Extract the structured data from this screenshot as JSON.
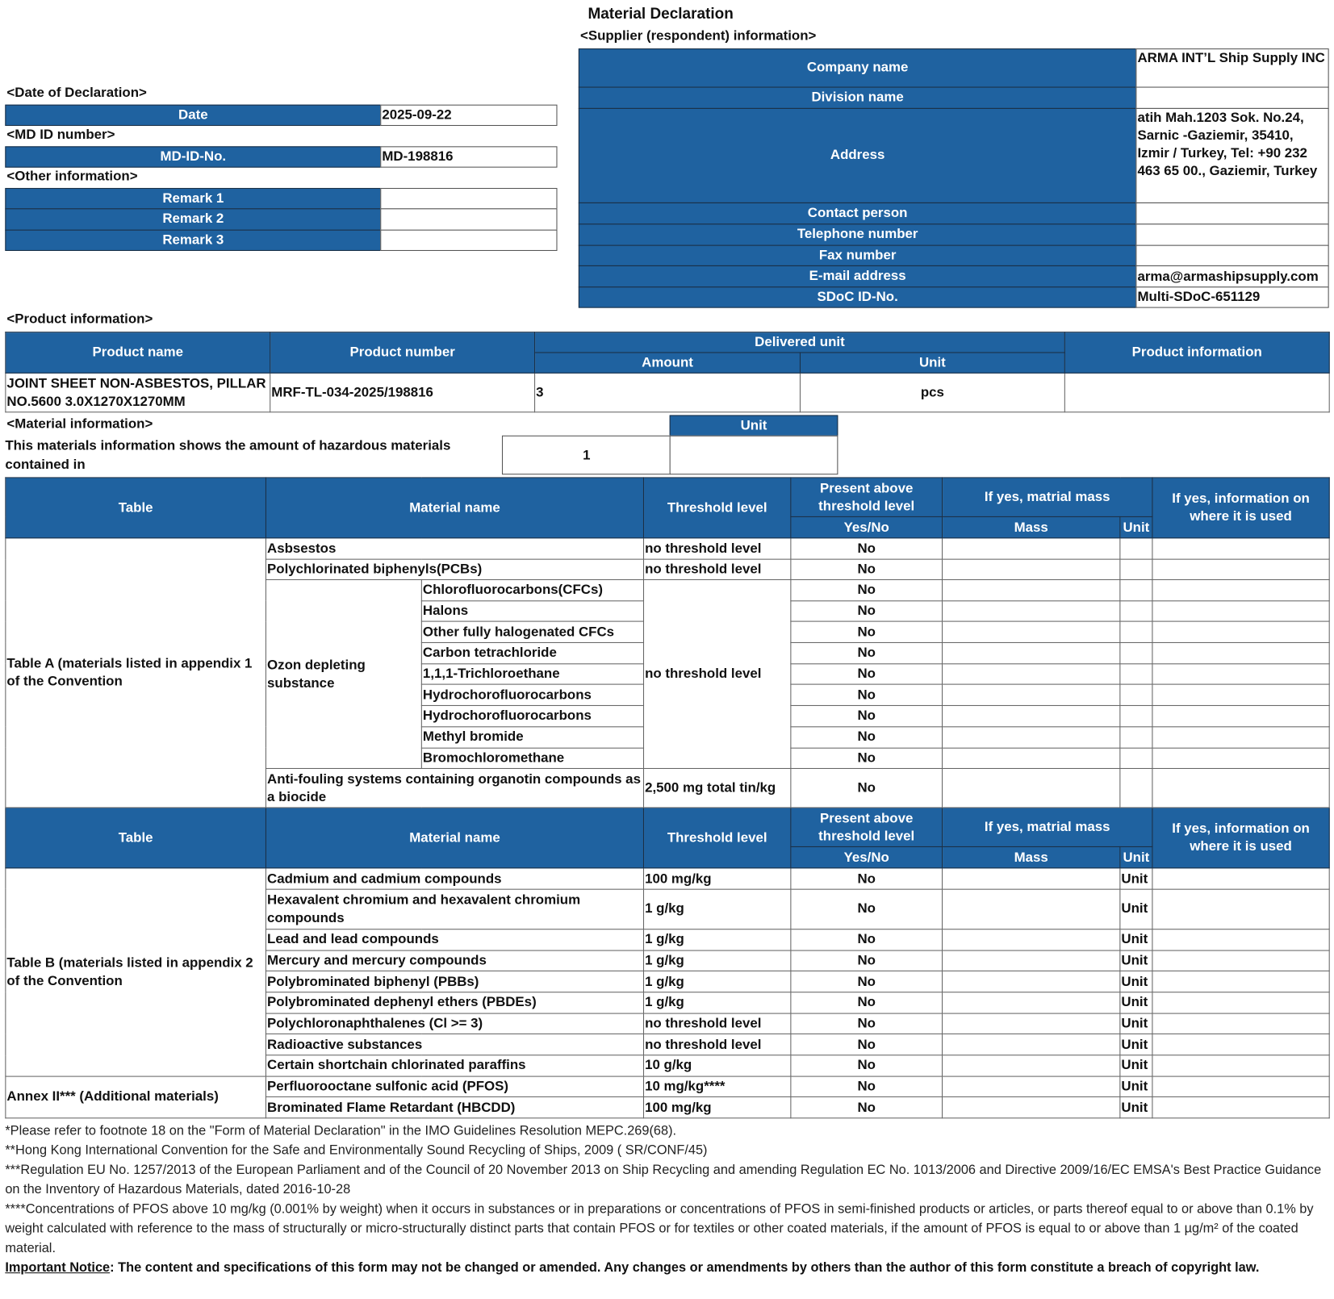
{
  "title": "Material Declaration",
  "supplier": {
    "section_label": "<Supplier (respondent) information>",
    "rows": [
      {
        "label": "Company name",
        "value": "ARMA INT’L Ship Supply INC"
      },
      {
        "label": "Division name",
        "value": ""
      },
      {
        "label": "Address",
        "value": "atih Mah.1203 Sok. No.24, Sarnic -Gaziemir, 35410, Izmir / Turkey, Tel: +90 232 463 65 00., Gaziemir, Turkey"
      },
      {
        "label": "Contact person",
        "value": ""
      },
      {
        "label": "Telephone number",
        "value": ""
      },
      {
        "label": "Fax number",
        "value": ""
      },
      {
        "label": "E-mail address",
        "value": "arma@armashipsupply.com"
      },
      {
        "label": "SDoC ID-No.",
        "value": "Multi-SDoC-651129"
      }
    ]
  },
  "declaration": {
    "section_label": "<Date of Declaration>",
    "date_label": "Date",
    "date_value": "2025-09-22"
  },
  "md_id": {
    "section_label": "<MD ID number>",
    "label": "MD-ID-No.",
    "value": "MD-198816"
  },
  "other": {
    "section_label": "<Other information>",
    "remarks": [
      {
        "label": "Remark 1",
        "value": ""
      },
      {
        "label": "Remark 2",
        "value": ""
      },
      {
        "label": "Remark 3",
        "value": ""
      }
    ]
  },
  "product": {
    "section_label": "<Product information>",
    "headers": {
      "name": "Product name",
      "number": "Product number",
      "delivered": "Delivered unit",
      "amount": "Amount",
      "unit": "Unit",
      "info": "Product information"
    },
    "row": {
      "name": "JOINT SHEET NON-ASBESTOS, PILLAR NO.5600 3.0X1270X1270MM",
      "number": "MRF-TL-034-2025/198816",
      "amount": "3",
      "unit": "pcs",
      "info": ""
    }
  },
  "material_info": {
    "section_label": "<Material information>",
    "statement": "This materials information shows the amount of hazardous materials contained in",
    "amount": "1",
    "unit_label": "Unit",
    "unit_value": ""
  },
  "headers": {
    "table": "Table",
    "material_name": "Material name",
    "threshold": "Threshold level",
    "present": "Present above threshold level",
    "yes_no": "Yes/No",
    "mass_group": "If yes, matrial mass",
    "mass": "Mass",
    "unit": "Unit",
    "info": "If yes, information on where it is used"
  },
  "table_a": {
    "label": "Table A (materials listed in appendix 1 of the Convention",
    "rows": [
      {
        "name": "Asbsestos",
        "threshold": "no threshold level",
        "present": "No"
      },
      {
        "name": "Polychlorinated biphenyls(PCBs)",
        "threshold": "no threshold level",
        "present": "No"
      }
    ],
    "ozone": {
      "label": "Ozon depleting substance",
      "threshold": "no threshold level",
      "items": [
        {
          "name": "Chlorofluorocarbons(CFCs)",
          "present": "No"
        },
        {
          "name": "Halons",
          "present": "No"
        },
        {
          "name": "Other fully halogenated CFCs",
          "present": "No"
        },
        {
          "name": "Carbon tetrachloride",
          "present": "No"
        },
        {
          "name": "1,1,1-Trichloroethane",
          "present": "No"
        },
        {
          "name": "Hydrochorofluorocarbons",
          "present": "No"
        },
        {
          "name": "Hydrochorofluorocarbons",
          "present": "No"
        },
        {
          "name": "Methyl bromide",
          "present": "No"
        },
        {
          "name": "Bromochloromethane",
          "present": "No"
        }
      ]
    },
    "antifouling": {
      "name": "Anti-fouling systems containing organotin compounds as a biocide",
      "threshold": "2,500 mg total tin/kg",
      "present": "No"
    }
  },
  "table_b": {
    "label": "Table B (materials listed in appendix 2 of the Convention",
    "annex_label": "Annex II*** (Additional materials)",
    "rows": [
      {
        "name": "Cadmium and cadmium compounds",
        "threshold": "100 mg/kg",
        "present": "No",
        "unit": "Unit"
      },
      {
        "name": "Hexavalent chromium and hexavalent chromium compounds",
        "threshold": "1 g/kg",
        "present": "No",
        "unit": "Unit"
      },
      {
        "name": "Lead and lead compounds",
        "threshold": "1 g/kg",
        "present": "No",
        "unit": "Unit"
      },
      {
        "name": "Mercury and mercury compounds",
        "threshold": "1 g/kg",
        "present": "No",
        "unit": "Unit"
      },
      {
        "name": "Polybrominated biphenyl (PBBs)",
        "threshold": "1 g/kg",
        "present": "No",
        "unit": "Unit"
      },
      {
        "name": "Polybrominated dephenyl ethers (PBDEs)",
        "threshold": "1 g/kg",
        "present": "No",
        "unit": "Unit"
      },
      {
        "name": "Polychloronaphthalenes (Cl >= 3)",
        "threshold": "no threshold level",
        "present": "No",
        "unit": "Unit"
      },
      {
        "name": "Radioactive substances",
        "threshold": "no threshold level",
        "present": "No",
        "unit": "Unit"
      },
      {
        "name": "Certain shortchain chlorinated paraffins",
        "threshold": "10 g/kg",
        "present": "No",
        "unit": "Unit"
      },
      {
        "name": "Perfluorooctane sulfonic acid (PFOS)",
        "threshold": "10 mg/kg****",
        "present": "No",
        "unit": "Unit"
      },
      {
        "name": "Brominated Flame Retardant (HBCDD)",
        "threshold": "100 mg/kg",
        "present": "No",
        "unit": "Unit"
      }
    ]
  },
  "footnotes": [
    "*Please refer to footnote 18 on the \"Form of Material Declaration\" in the IMO Guidelines Resolution MEPC.269(68).",
    "**Hong Kong International Convention for the Safe and Environmentally Sound Recycling of Ships, 2009 ( SR/CONF/45)",
    "***Regulation EU No. 1257/2013 of the European Parliament and of the Council of 20 November 2013 on Ship Recycling and amending Regulation EC No. 1013/2006 and Directive 2009/16/EC EMSA's Best Practice Guidance on the Inventory of Hazardous Materials, dated 2016-10-28",
    "****Concentrations of PFOS above 10 mg/kg (0.001% by weight) when it occurs in substances or in preparations or concentrations of PFOS in semi-finished products or articles, or parts thereof equal to or above than 0.1% by weight calculated with reference to the mass of structurally or micro-structurally distinct parts that contain PFOS or for textiles or other coated materials, if the amount of PFOS is equal to or above than 1 µg/m² of the coated material."
  ],
  "notice": {
    "label": "Important Notice",
    "text": ": The content and specifications of this form may not be changed or amended. Any changes or amendments by others than the author of this form constitute a breach of copyright law."
  },
  "colors": {
    "header_blue": "#1f62a0"
  }
}
